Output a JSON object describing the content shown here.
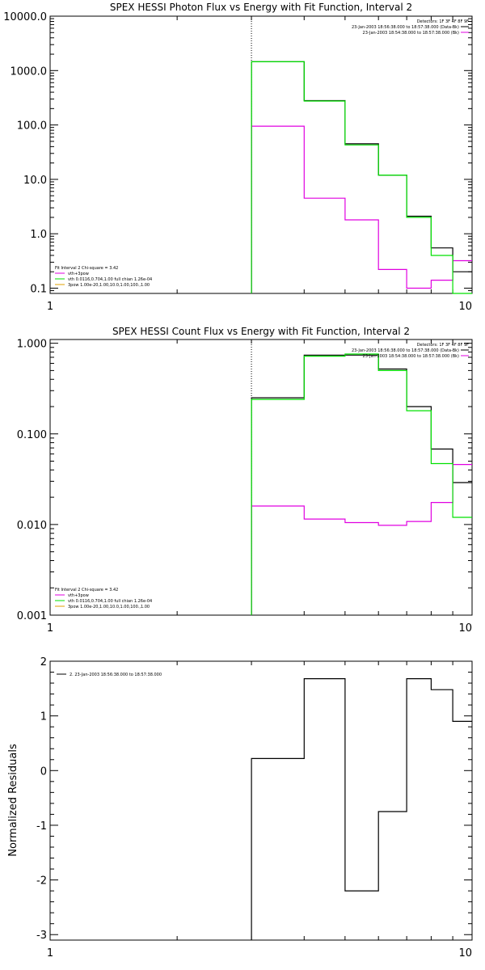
{
  "colors": {
    "black": "#000000",
    "green": "#00e000",
    "magenta": "#e000e0",
    "background": "#ffffff"
  },
  "chart_data": [
    {
      "type": "line",
      "title": "SPEX HESSI Photon Flux vs Energy with Fit Function, Interval 2",
      "xlabel": "",
      "ylabel": "",
      "x_scale": "log",
      "y_scale": "log",
      "xlim": [
        1,
        10
      ],
      "ylim": [
        0.08,
        10000
      ],
      "x_ticks": [
        "1",
        "10"
      ],
      "y_ticks": [
        "0.1",
        "1.0",
        "10.0",
        "100.0",
        "1000.0",
        "10000.0"
      ],
      "vline_x": 3,
      "legend_top_right": {
        "header": "Detectors: 1F 3F 4F 8F 9F",
        "entries": [
          "23-Jan-2003 18:56:38.000 to 18:57:38.000 (Data-Bk)",
          "23-Jan-2003 18:54:38.000 to 18:57:38.000 (Bk)"
        ]
      },
      "legend_bottom_left": {
        "header": "Fit Interval 2   Chi-square = 3.42",
        "entries": [
          "vth+3pow",
          "vth 0.0116,0.704,1.00  full chian 1.26e-04",
          "3pow 1.00e-20,1.00,10.0,1.00,100.,1.00"
        ]
      },
      "series": [
        {
          "name": "23-Jan-2003 18:56:38.000 to 18:57:38.000 (Data-Bk)",
          "color": "#000000",
          "style": "step",
          "edges": [
            3,
            4,
            5,
            6,
            7,
            8,
            9,
            10
          ],
          "values": [
            1450,
            280,
            45,
            12,
            2.1,
            0.55,
            0.2
          ]
        },
        {
          "name": "23-Jan-2003 18:54:38.000 to 18:57:38.000 (Bk)",
          "color": "#e000e0",
          "style": "step",
          "edges": [
            3,
            4,
            5,
            6,
            7,
            8,
            9,
            10
          ],
          "values": [
            95,
            4.5,
            1.8,
            0.22,
            0.1,
            0.14,
            0.32
          ]
        },
        {
          "name": "vth 0.0116,0.704,1.00  full chian 1.26e-04",
          "color": "#00e000",
          "style": "step",
          "edges": [
            3,
            4,
            5,
            6,
            7,
            8,
            9,
            10
          ],
          "values": [
            1450,
            275,
            43,
            12,
            2.0,
            0.4,
            0.08
          ]
        }
      ]
    },
    {
      "type": "line",
      "title": "SPEX HESSI Count Flux vs Energy with Fit Function, Interval 2",
      "xlabel": "",
      "ylabel": "",
      "x_scale": "log",
      "y_scale": "log",
      "xlim": [
        1,
        10
      ],
      "ylim": [
        0.001,
        1.1
      ],
      "x_ticks": [
        "1",
        "10"
      ],
      "y_ticks": [
        "0.001",
        "0.010",
        "0.100",
        "1.000"
      ],
      "vline_x": 3,
      "legend_top_right": {
        "header": "Detectors: 1F 3F 4F 8F 9F",
        "entries": [
          "23-Jan-2003 18:56:38.000 to 18:57:38.000 (Data-Bk)",
          "23-Jan-2003 18:54:38.000 to 18:57:38.000 (Bk)"
        ]
      },
      "legend_bottom_left": {
        "header": "Fit Interval 2   Chi-square = 3.42",
        "entries": [
          "vth+3pow",
          "vth 0.0116,0.704,1.00  full chian 1.26e-04",
          "3pow 1.00e-20,1.00,10.0,1.00,100.,1.00"
        ]
      },
      "series": [
        {
          "name": "23-Jan-2003 18:56:38.000 to 18:57:38.000 (Data-Bk)",
          "color": "#000000",
          "style": "step",
          "edges": [
            3,
            4,
            5,
            6,
            7,
            8,
            9,
            10
          ],
          "values": [
            0.25,
            0.74,
            0.74,
            0.52,
            0.2,
            0.068,
            0.029
          ]
        },
        {
          "name": "23-Jan-2003 18:54:38.000 to 18:57:38.000 (Bk)",
          "color": "#e000e0",
          "style": "step",
          "edges": [
            3,
            4,
            5,
            6,
            7,
            8,
            9,
            10
          ],
          "values": [
            0.016,
            0.0115,
            0.0105,
            0.0098,
            0.0108,
            0.0175,
            0.046
          ]
        },
        {
          "name": "vth 0.0116,0.704,1.00  full chian 1.26e-04",
          "color": "#00e000",
          "style": "step",
          "edges": [
            3,
            4,
            5,
            6,
            7,
            8,
            9,
            10
          ],
          "values": [
            0.24,
            0.72,
            0.76,
            0.5,
            0.18,
            0.047,
            0.012
          ]
        }
      ]
    },
    {
      "type": "line",
      "title": "",
      "xlabel": "",
      "ylabel": "Normalized Residuals",
      "x_scale": "log",
      "y_scale": "linear",
      "xlim": [
        1,
        10
      ],
      "ylim": [
        -3.1,
        2.0
      ],
      "x_ticks": [
        "1",
        "10"
      ],
      "y_ticks": [
        "-3",
        "-2",
        "-1",
        "0",
        "1",
        "2"
      ],
      "legend_top_left": {
        "entries": [
          "2. 23-Jan-2003 18:56:38.000 to 18:57:38.000"
        ]
      },
      "series": [
        {
          "name": "2. 23-Jan-2003 18:56:38.000 to 18:57:38.000",
          "color": "#000000",
          "style": "step",
          "edges": [
            3,
            4,
            5,
            6,
            7,
            8,
            9,
            10
          ],
          "values": [
            0.22,
            1.68,
            -2.2,
            -0.75,
            1.68,
            1.48,
            0.9
          ]
        }
      ]
    }
  ]
}
